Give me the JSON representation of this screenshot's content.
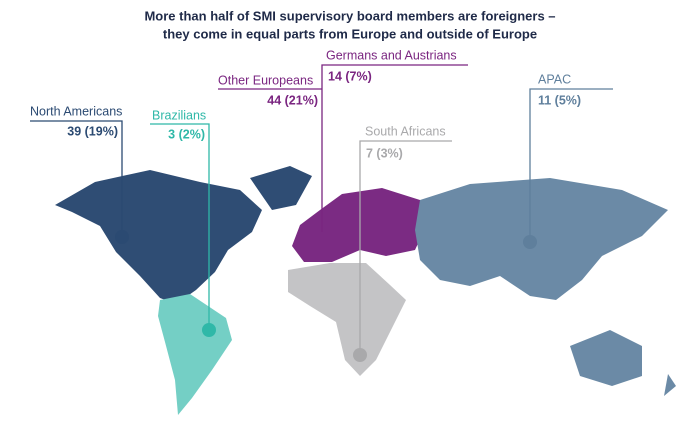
{
  "header": {
    "title_lines": [
      "More than half of SMI supervisory board members are foreigners –",
      "they come in equal parts from Europe and outside of Europe"
    ]
  },
  "regions": [
    {
      "label": "North Americans",
      "count_label": "39 (19%)"
    },
    {
      "label": "Brazilians",
      "count_label": "3 (2%)"
    },
    {
      "label": "Other Europeans",
      "count_label": "44 (21%)"
    },
    {
      "label": "Germans and Austrians",
      "count_label": "14 (7%)"
    },
    {
      "label": "South Africans",
      "count_label": "7 (3%)"
    },
    {
      "label": "APAC",
      "count_label": "11 (5%)"
    }
  ]
}
